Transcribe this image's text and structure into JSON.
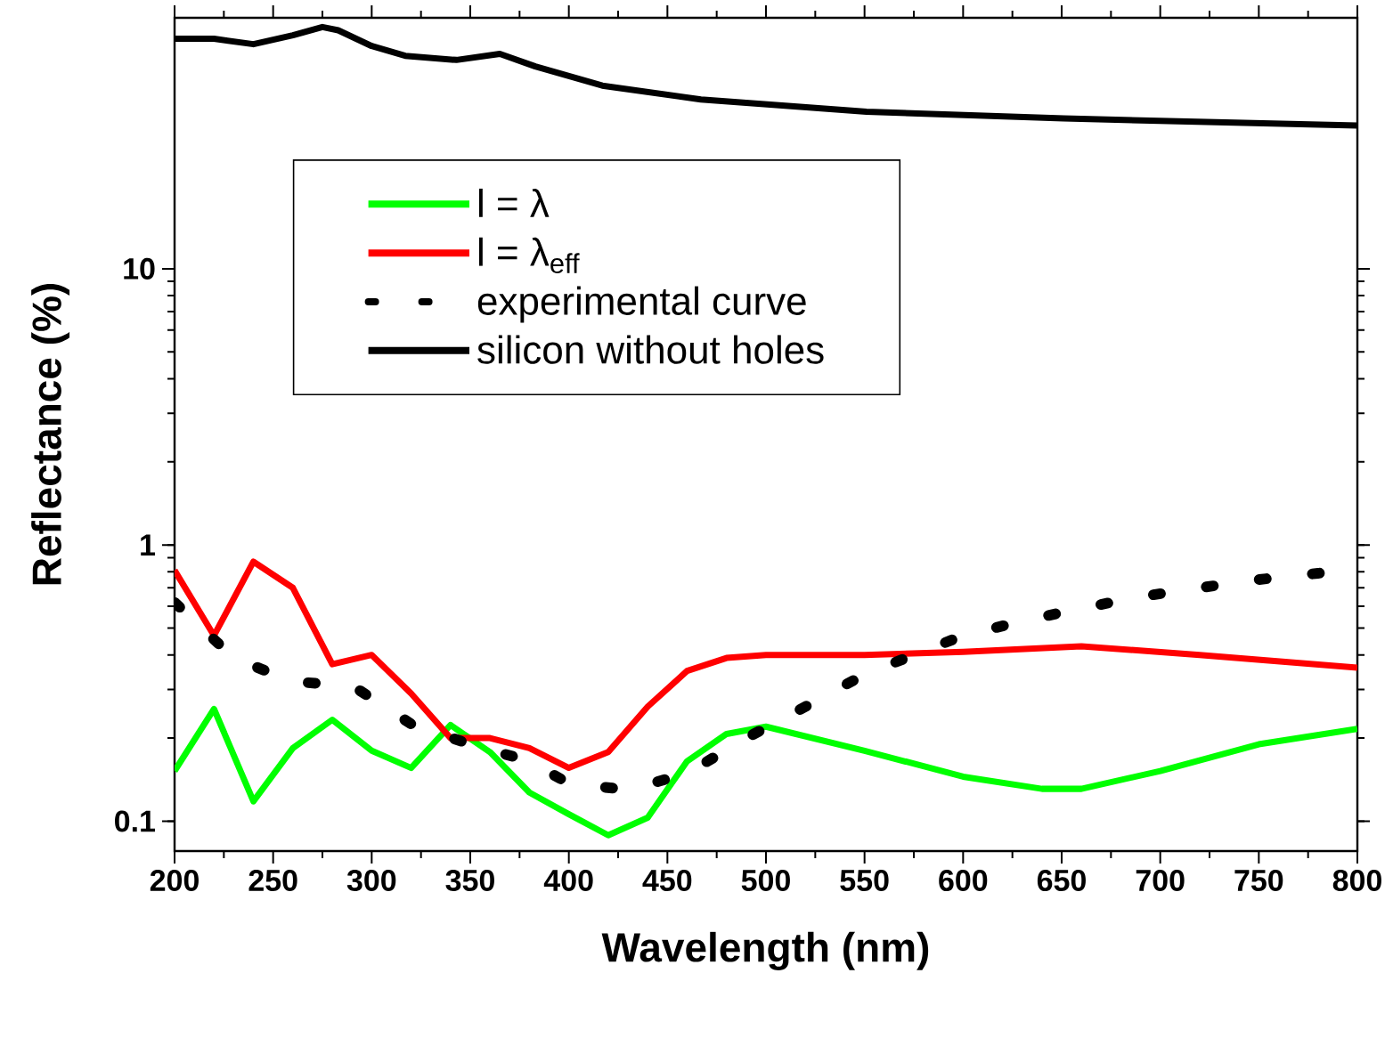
{
  "chart_data": {
    "type": "line",
    "xlabel": "Wavelength (nm)",
    "ylabel": "Reflectance (%)",
    "xlim": [
      200,
      800
    ],
    "xticks": [
      200,
      250,
      300,
      350,
      400,
      450,
      500,
      550,
      600,
      650,
      700,
      750,
      800
    ],
    "ylim": [
      0.078,
      81
    ],
    "yticks": [
      0.1,
      1,
      10
    ],
    "log": "y",
    "grid": false,
    "legend": "top left",
    "series": [
      {
        "name": "l =  λ",
        "color": "#00ff00",
        "line_style": "solid",
        "x": [
          200,
          220,
          240,
          260,
          280,
          300,
          320,
          340,
          360,
          380,
          400,
          420,
          440,
          460,
          480,
          500,
          550,
          600,
          640,
          660,
          700,
          750,
          800
        ],
        "values": [
          0.152,
          0.255,
          0.118,
          0.184,
          0.233,
          0.18,
          0.156,
          0.223,
          0.178,
          0.127,
          0.106,
          0.089,
          0.103,
          0.165,
          0.207,
          0.22,
          0.18,
          0.145,
          0.131,
          0.131,
          0.152,
          0.19,
          0.216
        ]
      },
      {
        "name": "l  = λ$_{eff}$",
        "color": "#ff0000",
        "line_style": "solid",
        "x": [
          200,
          220,
          240,
          260,
          280,
          300,
          320,
          340,
          360,
          380,
          400,
          420,
          440,
          460,
          480,
          500,
          550,
          600,
          660,
          720,
          800
        ],
        "values": [
          0.81,
          0.47,
          0.87,
          0.7,
          0.37,
          0.4,
          0.29,
          0.2,
          0.2,
          0.184,
          0.156,
          0.178,
          0.26,
          0.35,
          0.39,
          0.4,
          0.4,
          0.41,
          0.43,
          0.4,
          0.36
        ]
      },
      {
        "name": "experimental curve",
        "color": "#000000",
        "line_style": "dotted",
        "x": [
          200,
          230,
          260,
          290,
          320,
          350,
          380,
          400,
          430,
          460,
          490,
          520,
          550,
          575,
          600,
          630,
          660,
          690,
          720,
          750,
          780,
          800
        ],
        "values": [
          0.62,
          0.39,
          0.32,
          0.31,
          0.225,
          0.19,
          0.165,
          0.137,
          0.13,
          0.149,
          0.2,
          0.26,
          0.34,
          0.4,
          0.47,
          0.53,
          0.59,
          0.65,
          0.7,
          0.75,
          0.79,
          0.81
        ]
      },
      {
        "name": "silicon without holes",
        "color": "#000000",
        "line_style": "solid",
        "x": [
          200,
          220,
          240,
          260,
          275,
          283,
          300,
          317,
          343,
          365,
          383,
          417,
          467,
          551,
          651,
          800
        ],
        "values": [
          68,
          68,
          65,
          70,
          75,
          73,
          64,
          59,
          57,
          60,
          54,
          46,
          41,
          37,
          35,
          33
        ]
      }
    ]
  }
}
